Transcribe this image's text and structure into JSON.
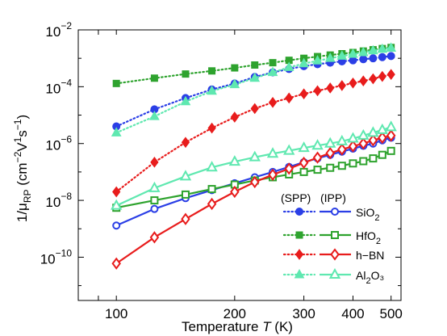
{
  "chart_data": {
    "type": "line",
    "title": "",
    "xlabel": "Temperature T (K)",
    "ylabel": "1/μ_RP (cm^-2 V^1 s^-1)",
    "x_scale": "log",
    "y_scale": "log",
    "xlim": [
      80,
      530
    ],
    "ylim": [
      3e-12,
      0.01
    ],
    "x_ticks": [
      100,
      200,
      300,
      400,
      500
    ],
    "y_ticks": [
      1e-10,
      1e-08,
      1e-06,
      0.0001,
      0.01
    ],
    "grid": false,
    "legend": {
      "placement": "bottom-right",
      "header_spp": "(SPP)",
      "header_ipp": "(IPP)"
    },
    "materials": [
      {
        "name": "SiO₂",
        "color": "#2b3fe6",
        "marker": "circle"
      },
      {
        "name": "HfO₂",
        "color": "#2ea32e",
        "marker": "square"
      },
      {
        "name": "h−BN",
        "color": "#e81c1c",
        "marker": "diamond"
      },
      {
        "name": "Al₂O₃",
        "color": "#5fe8b0",
        "marker": "triangle"
      }
    ],
    "x": [
      100,
      125,
      150,
      175,
      200,
      225,
      250,
      275,
      300,
      325,
      350,
      375,
      400,
      425,
      450,
      475,
      500
    ],
    "series": [
      {
        "name": "SiO₂ (SPP)",
        "material": 0,
        "kind": "SPP",
        "values": [
          4e-06,
          1.6e-05,
          4e-05,
          8e-05,
          0.00013,
          0.00022,
          0.00032,
          0.00042,
          0.00053,
          0.00062,
          0.0007,
          0.00078,
          0.00085,
          0.00093,
          0.001,
          0.0011,
          0.0012
        ]
      },
      {
        "name": "HfO₂ (SPP)",
        "material": 1,
        "kind": "SPP",
        "values": [
          0.00013,
          0.0002,
          0.00028,
          0.00036,
          0.00046,
          0.00058,
          0.0007,
          0.00085,
          0.001,
          0.00115,
          0.0013,
          0.00145,
          0.0016,
          0.0018,
          0.002,
          0.0022,
          0.0024
        ]
      },
      {
        "name": "h−BN (SPP)",
        "material": 2,
        "kind": "SPP",
        "values": [
          2e-08,
          2.2e-07,
          1.1e-06,
          3.5e-06,
          8.5e-06,
          1.7e-05,
          2.8e-05,
          4e-05,
          5.6e-05,
          7.2e-05,
          9e-05,
          0.00011,
          0.000135,
          0.00016,
          0.00019,
          0.00023,
          0.00027
        ]
      },
      {
        "name": "Al₂O₃ (SPP)",
        "material": 3,
        "kind": "SPP",
        "values": [
          2.4e-06,
          9e-06,
          3e-05,
          7e-05,
          0.00012,
          0.0002,
          0.00032,
          0.00048,
          0.00065,
          0.00082,
          0.001,
          0.0012,
          0.0014,
          0.0016,
          0.00185,
          0.0021,
          0.0023
        ]
      },
      {
        "name": "SiO₂ (IPP)",
        "material": 0,
        "kind": "IPP",
        "values": [
          1.3e-09,
          5e-09,
          1.2e-08,
          2.3e-08,
          4e-08,
          6.5e-08,
          1e-07,
          1.5e-07,
          2.2e-07,
          3e-07,
          4e-07,
          5.2e-07,
          6.6e-07,
          8.3e-07,
          1e-06,
          1.3e-06,
          1.6e-06
        ]
      },
      {
        "name": "HfO₂ (IPP)",
        "material": 1,
        "kind": "IPP",
        "values": [
          5.5e-09,
          1e-08,
          1.6e-08,
          2.5e-08,
          3.6e-08,
          5e-08,
          6.5e-08,
          8.2e-08,
          1e-07,
          1.2e-07,
          1.4e-07,
          1.65e-07,
          2e-07,
          2.4e-07,
          3e-07,
          4e-07,
          5.5e-07
        ]
      },
      {
        "name": "h−BN (IPP)",
        "material": 2,
        "kind": "IPP",
        "values": [
          6e-11,
          5e-10,
          2.2e-09,
          7.5e-09,
          2e-08,
          4.4e-08,
          8e-08,
          1.3e-07,
          2.1e-07,
          3.2e-07,
          4.6e-07,
          6.2e-07,
          8e-07,
          1e-06,
          1.3e-06,
          1.6e-06,
          1.9e-06
        ]
      },
      {
        "name": "Al₂O₃ (IPP)",
        "material": 3,
        "kind": "IPP",
        "values": [
          6.5e-09,
          2.7e-08,
          7e-08,
          1.45e-07,
          2.3e-07,
          3.3e-07,
          4.4e-07,
          5.6e-07,
          7e-07,
          8.5e-07,
          1e-06,
          1.2e-06,
          1.5e-06,
          1.9e-06,
          2.4e-06,
          3e-06,
          3.8e-06
        ]
      }
    ]
  }
}
